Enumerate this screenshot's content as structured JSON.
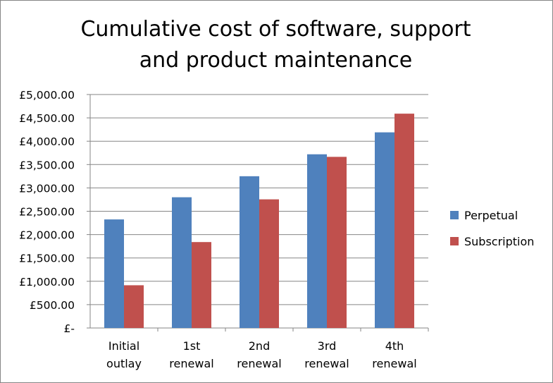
{
  "chart_data": {
    "type": "bar",
    "title": [
      "Cumulative cost of software, support",
      "and product maintenance"
    ],
    "categories": [
      [
        "Initial",
        "outlay"
      ],
      [
        "1st",
        "renewal"
      ],
      [
        "2nd",
        "renewal"
      ],
      [
        "3rd",
        "renewal"
      ],
      [
        "4th",
        "renewal"
      ]
    ],
    "series": [
      {
        "name": "Perpetual",
        "color": "#4f81bd",
        "values": [
          2325,
          2800,
          3250,
          3720,
          4190
        ]
      },
      {
        "name": "Subscription",
        "color": "#c0504d",
        "values": [
          915,
          1840,
          2755,
          3665,
          4590
        ]
      }
    ],
    "ylim": [
      0,
      5000
    ],
    "yticks": [
      0,
      500,
      1000,
      1500,
      2000,
      2500,
      3000,
      3500,
      4000,
      4500,
      5000
    ],
    "ytick_labels": [
      "£-",
      "£500.00",
      "£1,000.00",
      "£1,500.00",
      "£2,000.00",
      "£2,500.00",
      "£3,000.00",
      "£3,500.00",
      "£4,000.00",
      "£4,500.00",
      "£5,000.00"
    ],
    "xlabel": "",
    "ylabel": "",
    "grid": true,
    "legend": "right"
  }
}
